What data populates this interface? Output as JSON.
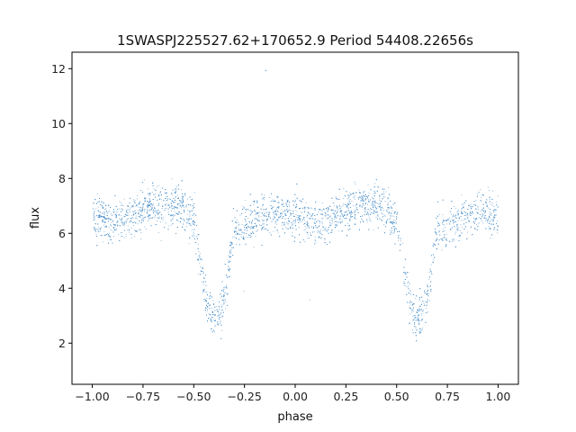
{
  "chart_data": {
    "type": "scatter",
    "title": "1SWASPJ225527.62+170652.9 Period 54408.22656s",
    "xlabel": "phase",
    "ylabel": "flux",
    "xlim": [
      -1.1,
      1.1
    ],
    "ylim": [
      0.5,
      12.6
    ],
    "xticks": [
      -1.0,
      -0.75,
      -0.5,
      -0.25,
      0.0,
      0.25,
      0.5,
      0.75,
      1.0
    ],
    "xtick_labels": [
      "−1.00",
      "−0.75",
      "−0.50",
      "−0.25",
      "0.00",
      "0.25",
      "0.50",
      "0.75",
      "1.00"
    ],
    "yticks": [
      2,
      4,
      6,
      8,
      10,
      12
    ],
    "ytick_labels": [
      "2",
      "4",
      "6",
      "8",
      "10",
      "12"
    ],
    "grid": false,
    "legend": "none",
    "marker_color": "#4a8fc8",
    "series": [
      {
        "description_points": "phase-folded light curve, mirrored over two cycles (-1..1)",
        "x": [
          -1.0,
          -0.95,
          -0.9,
          -0.85,
          -0.8,
          -0.75,
          -0.7,
          -0.65,
          -0.6,
          -0.55,
          -0.5,
          -0.48,
          -0.46,
          -0.44,
          -0.42,
          -0.4,
          -0.38,
          -0.36,
          -0.34,
          -0.32,
          -0.3,
          -0.25,
          -0.2,
          -0.15,
          -0.1,
          -0.05,
          0.0,
          0.05,
          0.1,
          0.15,
          0.2,
          0.25,
          0.3,
          0.35,
          0.4,
          0.45,
          0.5,
          0.52,
          0.54,
          0.56,
          0.58,
          0.6,
          0.62,
          0.64,
          0.66,
          0.68,
          0.7,
          0.75,
          0.8,
          0.85,
          0.9,
          0.95,
          1.0
        ],
        "y": [
          6.6,
          6.5,
          6.4,
          6.5,
          6.7,
          6.9,
          7.0,
          7.05,
          7.0,
          6.9,
          6.4,
          5.5,
          4.6,
          3.6,
          3.0,
          2.9,
          3.0,
          3.3,
          4.2,
          5.4,
          6.2,
          6.3,
          6.5,
          6.7,
          6.8,
          6.7,
          6.6,
          6.5,
          6.4,
          6.5,
          6.7,
          6.9,
          7.0,
          7.05,
          7.0,
          6.9,
          6.4,
          5.5,
          4.6,
          3.6,
          3.0,
          2.9,
          3.0,
          3.3,
          4.2,
          5.4,
          6.2,
          6.3,
          6.5,
          6.7,
          6.8,
          6.7,
          6.6
        ]
      }
    ]
  }
}
